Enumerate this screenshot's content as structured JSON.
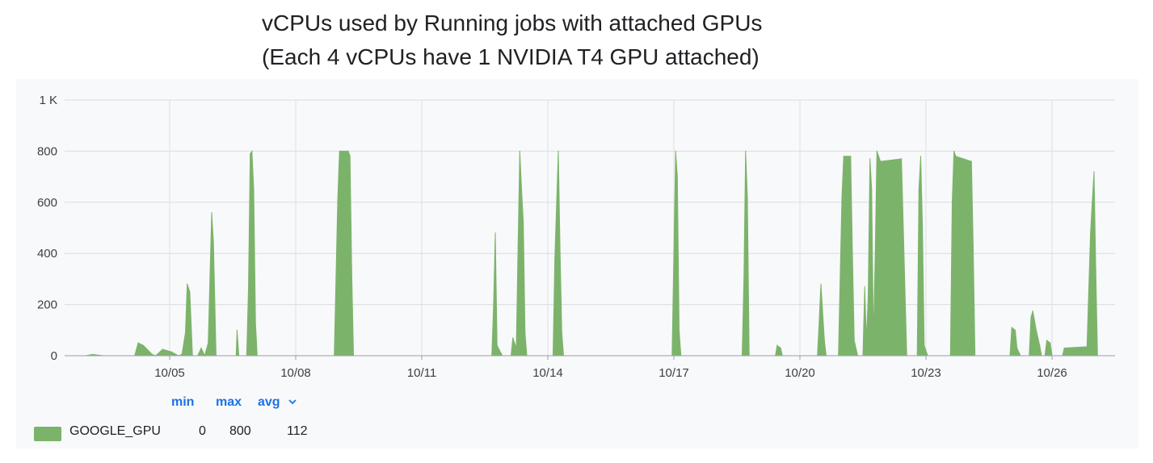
{
  "chart_data": {
    "type": "area",
    "title": "vCPUs used by Running jobs with attached GPUs",
    "subtitle": "(Each 4 vCPUs have 1 NVIDIA T4 GPU attached)",
    "ylim": [
      0,
      1000
    ],
    "y_ticks": [
      {
        "value": 1000,
        "label": "1 K"
      },
      {
        "value": 800,
        "label": "800"
      },
      {
        "value": 600,
        "label": "600"
      },
      {
        "value": 400,
        "label": "400"
      },
      {
        "value": 200,
        "label": "200"
      },
      {
        "value": 0,
        "label": "0"
      }
    ],
    "x_range_days": [
      "10/02 12:00",
      "10/27 12:00"
    ],
    "x_ticks": [
      "10/05",
      "10/08",
      "10/11",
      "10/14",
      "10/17",
      "10/20",
      "10/23",
      "10/26"
    ],
    "grid": true,
    "series": [
      {
        "name": "GOOGLE_GPU",
        "color": "#7cb36b",
        "points": [
          [
            "10/03 00:00",
            0
          ],
          [
            "10/03 04:00",
            5
          ],
          [
            "10/03 10:00",
            0
          ],
          [
            "10/04 04:00",
            0
          ],
          [
            "10/04 06:00",
            50
          ],
          [
            "10/04 09:00",
            40
          ],
          [
            "10/04 14:00",
            5
          ],
          [
            "10/04 16:00",
            0
          ],
          [
            "10/04 20:00",
            25
          ],
          [
            "10/05 01:00",
            15
          ],
          [
            "10/05 05:00",
            0
          ],
          [
            "10/05 07:00",
            5
          ],
          [
            "10/05 09:00",
            90
          ],
          [
            "10/05 10:00",
            280
          ],
          [
            "10/05 11:30",
            250
          ],
          [
            "10/05 13:00",
            0
          ],
          [
            "10/05 16:00",
            0
          ],
          [
            "10/05 18:00",
            30
          ],
          [
            "10/05 20:00",
            0
          ],
          [
            "10/05 22:00",
            50
          ],
          [
            "10/06 00:00",
            560
          ],
          [
            "10/06 01:00",
            440
          ],
          [
            "10/06 02:30",
            0
          ],
          [
            "10/06 14:00",
            0
          ],
          [
            "10/06 14:30",
            100
          ],
          [
            "10/06 15:30",
            0
          ],
          [
            "10/06 20:00",
            0
          ],
          [
            "10/06 21:00",
            260
          ],
          [
            "10/06 22:00",
            790
          ],
          [
            "10/06 23:00",
            800
          ],
          [
            "10/07 00:00",
            650
          ],
          [
            "10/07 01:00",
            130
          ],
          [
            "10/07 02:00",
            0
          ],
          [
            "10/08 22:00",
            0
          ],
          [
            "10/09 00:00",
            610
          ],
          [
            "10/09 01:00",
            800
          ],
          [
            "10/09 06:00",
            800
          ],
          [
            "10/09 07:00",
            780
          ],
          [
            "10/09 08:00",
            330
          ],
          [
            "10/09 09:00",
            0
          ],
          [
            "10/12 16:00",
            0
          ],
          [
            "10/12 17:00",
            190
          ],
          [
            "10/12 18:00",
            480
          ],
          [
            "10/12 19:00",
            40
          ],
          [
            "10/12 22:00",
            0
          ],
          [
            "10/13 03:00",
            0
          ],
          [
            "10/13 04:00",
            70
          ],
          [
            "10/13 06:00",
            30
          ],
          [
            "10/13 07:00",
            430
          ],
          [
            "10/13 08:00",
            800
          ],
          [
            "10/13 09:00",
            650
          ],
          [
            "10/13 10:00",
            520
          ],
          [
            "10/13 11:00",
            90
          ],
          [
            "10/13 12:00",
            0
          ],
          [
            "10/14 03:00",
            0
          ],
          [
            "10/14 04:00",
            380
          ],
          [
            "10/14 06:00",
            800
          ],
          [
            "10/14 07:00",
            400
          ],
          [
            "10/14 08:00",
            90
          ],
          [
            "10/14 09:00",
            0
          ],
          [
            "10/16 23:00",
            0
          ],
          [
            "10/17 00:00",
            400
          ],
          [
            "10/17 01:00",
            800
          ],
          [
            "10/17 02:00",
            700
          ],
          [
            "10/17 03:00",
            100
          ],
          [
            "10/17 04:00",
            0
          ],
          [
            "10/18 15:00",
            0
          ],
          [
            "10/18 16:00",
            300
          ],
          [
            "10/18 17:00",
            800
          ],
          [
            "10/18 18:00",
            620
          ],
          [
            "10/18 19:00",
            0
          ],
          [
            "10/19 10:00",
            0
          ],
          [
            "10/19 11:00",
            40
          ],
          [
            "10/19 13:00",
            30
          ],
          [
            "10/19 14:00",
            0
          ],
          [
            "10/20 10:00",
            0
          ],
          [
            "10/20 11:00",
            130
          ],
          [
            "10/20 12:00",
            280
          ],
          [
            "10/20 14:00",
            60
          ],
          [
            "10/20 15:00",
            0
          ],
          [
            "10/20 22:00",
            0
          ],
          [
            "10/21 00:00",
            620
          ],
          [
            "10/21 01:00",
            780
          ],
          [
            "10/21 05:00",
            780
          ],
          [
            "10/21 06:00",
            400
          ],
          [
            "10/21 07:00",
            60
          ],
          [
            "10/21 09:00",
            0
          ],
          [
            "10/21 12:00",
            0
          ],
          [
            "10/21 13:00",
            270
          ],
          [
            "10/21 14:00",
            60
          ],
          [
            "10/21 15:00",
            230
          ],
          [
            "10/21 16:00",
            770
          ],
          [
            "10/21 17:00",
            650
          ],
          [
            "10/21 18:00",
            60
          ],
          [
            "10/21 19:00",
            400
          ],
          [
            "10/21 20:00",
            800
          ],
          [
            "10/21 22:00",
            760
          ],
          [
            "10/22 10:00",
            770
          ],
          [
            "10/22 12:00",
            260
          ],
          [
            "10/22 13:00",
            0
          ],
          [
            "10/22 19:00",
            0
          ],
          [
            "10/22 20:00",
            650
          ],
          [
            "10/22 21:00",
            780
          ],
          [
            "10/22 22:00",
            500
          ],
          [
            "10/22 23:00",
            40
          ],
          [
            "10/23 01:00",
            0
          ],
          [
            "10/23 14:00",
            0
          ],
          [
            "10/23 15:00",
            600
          ],
          [
            "10/23 16:00",
            800
          ],
          [
            "10/23 17:00",
            780
          ],
          [
            "10/24 02:00",
            760
          ],
          [
            "10/24 03:00",
            420
          ],
          [
            "10/24 04:00",
            0
          ],
          [
            "10/25 00:00",
            0
          ],
          [
            "10/25 01:00",
            110
          ],
          [
            "10/25 03:00",
            100
          ],
          [
            "10/25 04:00",
            30
          ],
          [
            "10/25 06:00",
            0
          ],
          [
            "10/25 11:00",
            0
          ],
          [
            "10/25 12:00",
            150
          ],
          [
            "10/25 13:00",
            175
          ],
          [
            "10/25 15:00",
            100
          ],
          [
            "10/25 17:00",
            40
          ],
          [
            "10/25 18:00",
            0
          ],
          [
            "10/25 20:00",
            0
          ],
          [
            "10/25 21:00",
            60
          ],
          [
            "10/25 23:00",
            50
          ],
          [
            "10/26 00:00",
            0
          ],
          [
            "10/26 06:00",
            0
          ],
          [
            "10/26 07:00",
            30
          ],
          [
            "10/26 20:00",
            35
          ],
          [
            "10/26 22:00",
            480
          ],
          [
            "10/26 23:00",
            600
          ],
          [
            "10/27 00:00",
            720
          ],
          [
            "10/27 01:00",
            330
          ],
          [
            "10/27 02:00",
            0
          ]
        ]
      }
    ],
    "legend": {
      "position": "bottom-left",
      "columns": [
        "min",
        "max",
        "avg"
      ],
      "sort_column": "avg",
      "rows": [
        {
          "name": "GOOGLE_GPU",
          "min": "0",
          "max": "800",
          "avg": "112"
        }
      ]
    }
  }
}
